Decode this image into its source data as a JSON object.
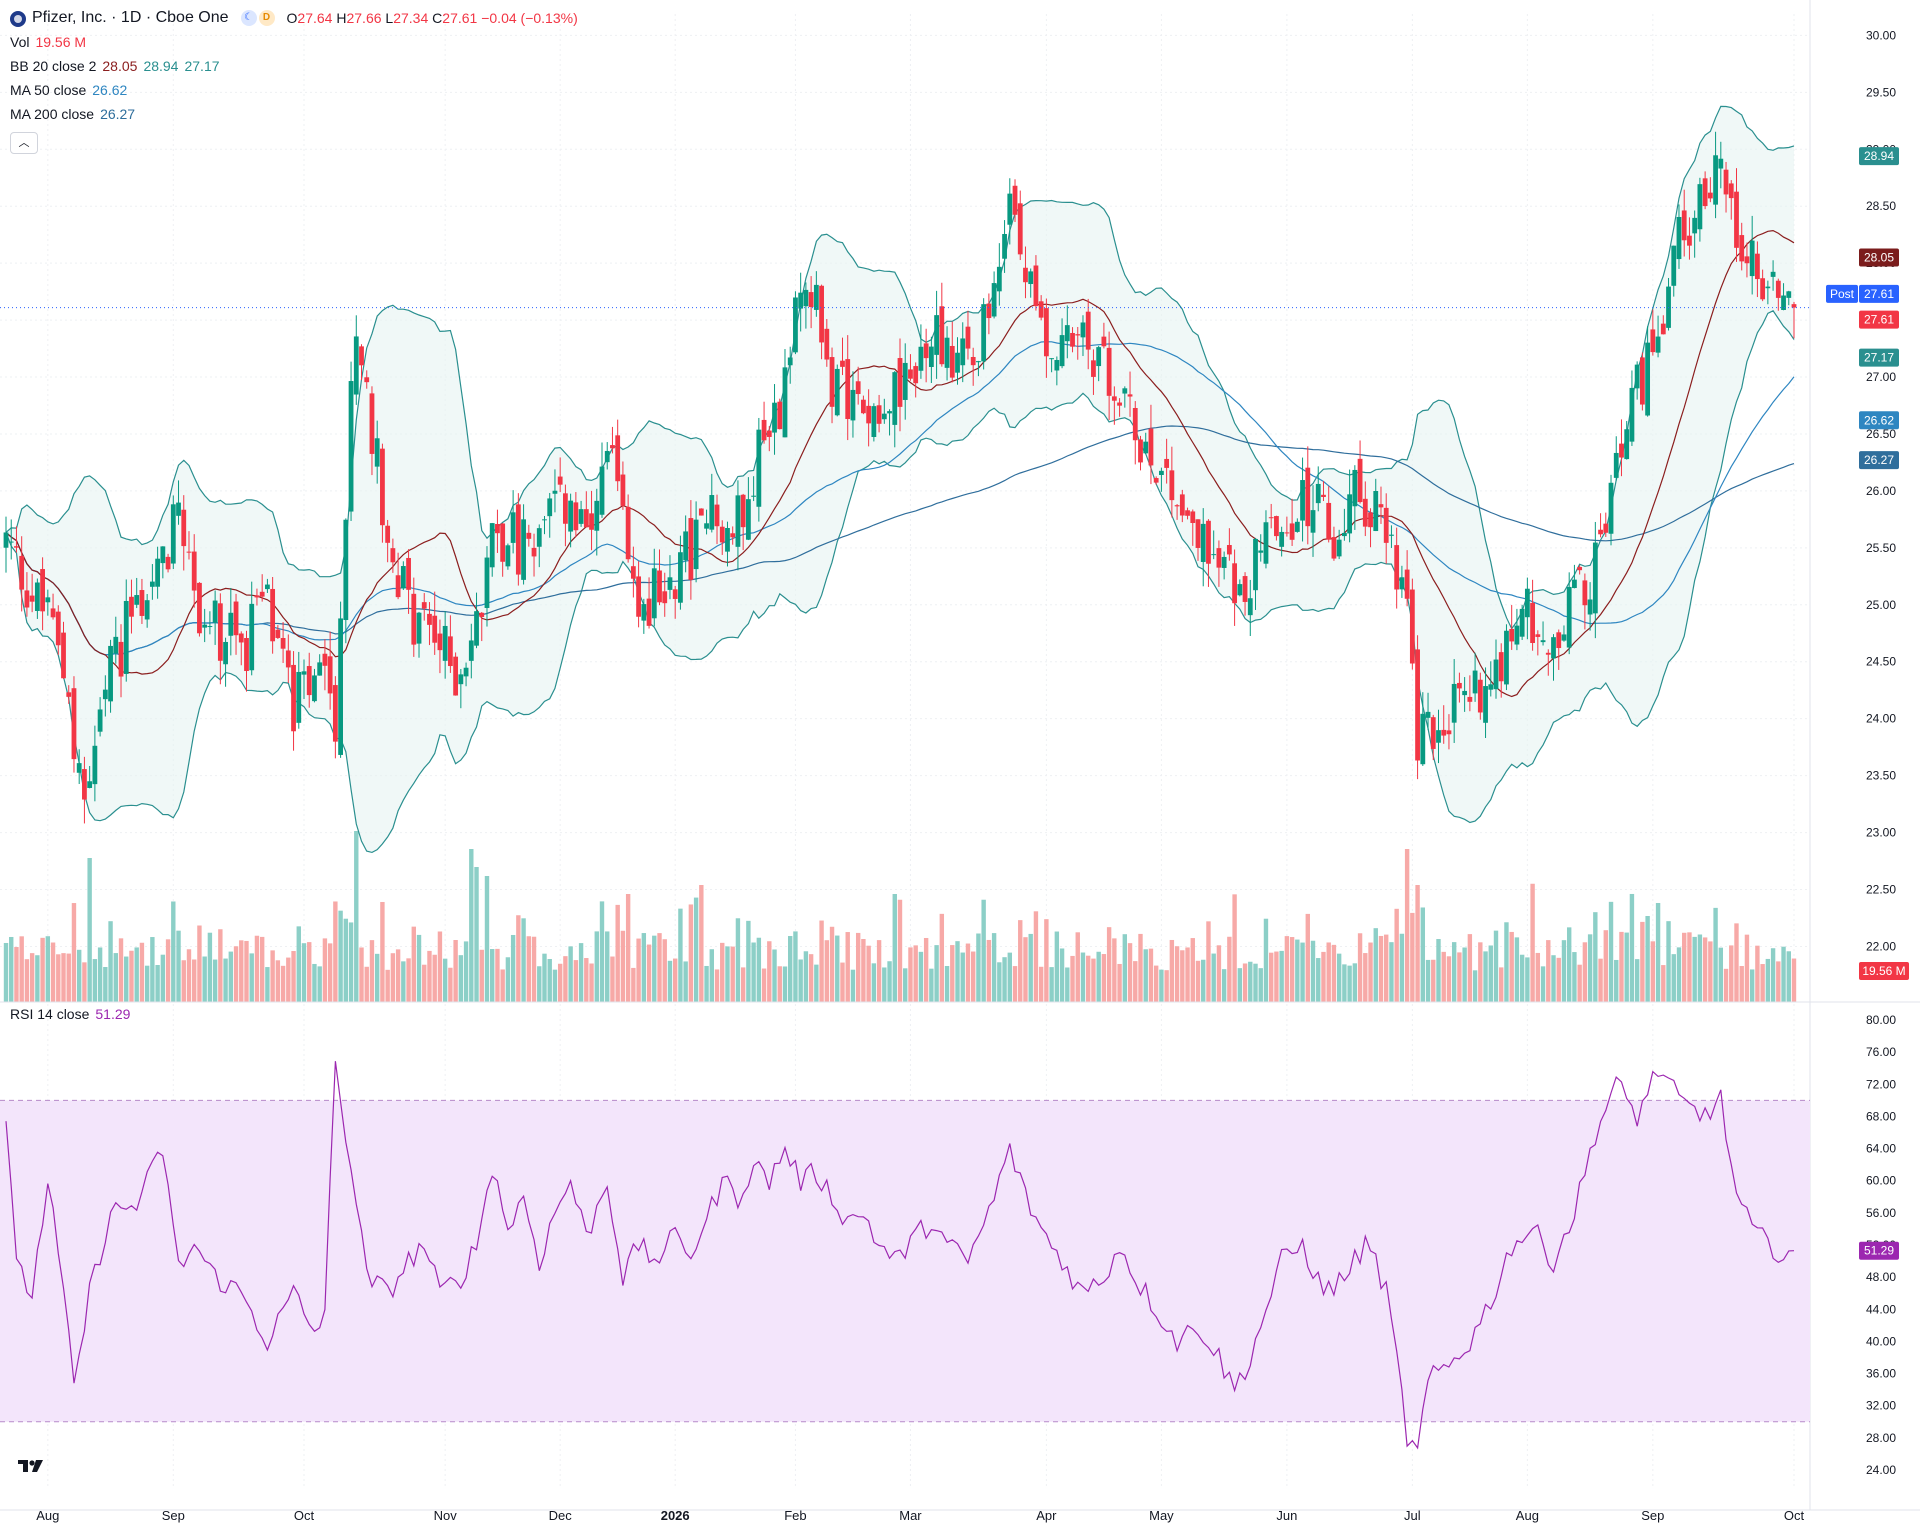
{
  "header": {
    "symbol": "Pfizer, Inc. · 1D · Cboe One",
    "ohlc": {
      "o_label": "O",
      "o": "27.64",
      "h_label": "H",
      "h": "27.66",
      "l_label": "L",
      "l": "27.34",
      "c_label": "C",
      "c": "27.61",
      "change": "−0.04 (−0.13%)"
    }
  },
  "legend": {
    "vol_label": "Vol",
    "vol_value": "19.56 M",
    "bb_label": "BB 20 close 2",
    "bb_basis": "28.05",
    "bb_upper": "28.94",
    "bb_lower": "27.17",
    "ma50_label": "MA 50 close",
    "ma50_value": "26.62",
    "ma200_label": "MA 200 close",
    "ma200_value": "26.27",
    "rsi_label": "RSI 14 close",
    "rsi_value": "51.29"
  },
  "price_badges": {
    "bb_upper": "28.94",
    "bb_basis": "28.05",
    "post_label": "Post",
    "post_price": "27.61",
    "last_price": "27.61",
    "bb_lower": "27.17",
    "ma50": "26.62",
    "ma200": "26.27",
    "volume": "19.56 M",
    "rsi": "51.29"
  },
  "colors": {
    "up": "#089981",
    "down": "#f23645",
    "vol_up": "#8ccfc7",
    "vol_down": "#f7a9a7",
    "bb_band": "#2a8f8f",
    "bb_fill": "#e6f3f1",
    "bb_basis": "#8b1e1e",
    "ma50": "#2e86c1",
    "ma200": "#2f6e9c",
    "rsi": "#9c27b0",
    "rsi_band": "#f3e5fb",
    "post_badge": "#2962ff",
    "grid": "#eef0f3"
  },
  "chart_data": {
    "type": "candlestick",
    "x_ticks": [
      "Aug",
      "Sep",
      "Oct",
      "Nov",
      "Dec",
      "2026",
      "Feb",
      "Mar",
      "Apr",
      "May",
      "Jun",
      "Jul",
      "Aug",
      "Sep",
      "Oct"
    ],
    "price_axis_ticks": [
      "30.00",
      "29.50",
      "29.00",
      "28.50",
      "28.00",
      "27.50",
      "27.00",
      "26.50",
      "26.00",
      "25.50",
      "25.00",
      "24.50",
      "24.00",
      "23.50",
      "23.00",
      "22.50",
      "22.00"
    ],
    "price_ylim": [
      21.6,
      30.1
    ],
    "rsi_axis_ticks": [
      "80.00",
      "76.00",
      "72.00",
      "68.00",
      "64.00",
      "60.00",
      "56.00",
      "52.00",
      "48.00",
      "44.00",
      "40.00",
      "36.00",
      "32.00",
      "28.00",
      "24.00"
    ],
    "rsi_ylim": [
      23,
      81
    ],
    "rsi_band": [
      30,
      70
    ],
    "price_anchors": [
      [
        0,
        25.55
      ],
      [
        5,
        25.1
      ],
      [
        10,
        24.7
      ],
      [
        15,
        23.2
      ],
      [
        20,
        24.4
      ],
      [
        25,
        25.0
      ],
      [
        30,
        25.3
      ],
      [
        33,
        26.0
      ],
      [
        36,
        25.0
      ],
      [
        40,
        24.8
      ],
      [
        45,
        24.6
      ],
      [
        50,
        25.0
      ],
      [
        55,
        24.1
      ],
      [
        60,
        24.3
      ],
      [
        63,
        24.0
      ],
      [
        67,
        27.6
      ],
      [
        70,
        26.5
      ],
      [
        73,
        25.7
      ],
      [
        77,
        24.9
      ],
      [
        81,
        24.8
      ],
      [
        86,
        24.4
      ],
      [
        90,
        24.8
      ],
      [
        94,
        25.7
      ],
      [
        98,
        25.5
      ],
      [
        102,
        25.6
      ],
      [
        107,
        25.9
      ],
      [
        111,
        25.5
      ],
      [
        116,
        26.3
      ],
      [
        120,
        25.0
      ],
      [
        125,
        25.1
      ],
      [
        130,
        25.4
      ],
      [
        135,
        25.8
      ],
      [
        139,
        25.6
      ],
      [
        143,
        26.2
      ],
      [
        148,
        26.8
      ],
      [
        151,
        27.7
      ],
      [
        153,
        28.0
      ],
      [
        158,
        26.9
      ],
      [
        162,
        26.8
      ],
      [
        168,
        26.8
      ],
      [
        172,
        26.9
      ],
      [
        178,
        27.4
      ],
      [
        182,
        27.2
      ],
      [
        188,
        27.5
      ],
      [
        192,
        28.6
      ],
      [
        196,
        27.7
      ],
      [
        200,
        27.2
      ],
      [
        205,
        27.3
      ],
      [
        210,
        27.1
      ],
      [
        215,
        26.6
      ],
      [
        220,
        26.3
      ],
      [
        225,
        25.9
      ],
      [
        230,
        25.4
      ],
      [
        235,
        25.2
      ],
      [
        240,
        25.4
      ],
      [
        245,
        25.8
      ],
      [
        250,
        25.9
      ],
      [
        254,
        25.5
      ],
      [
        258,
        26.0
      ],
      [
        262,
        25.8
      ],
      [
        266,
        25.4
      ],
      [
        268,
        24.9
      ],
      [
        270,
        23.8
      ],
      [
        273,
        24.0
      ],
      [
        276,
        24.1
      ],
      [
        280,
        24.2
      ],
      [
        285,
        24.5
      ],
      [
        290,
        25.0
      ],
      [
        295,
        24.7
      ],
      [
        300,
        25.0
      ],
      [
        305,
        25.5
      ],
      [
        309,
        26.5
      ],
      [
        313,
        27.0
      ],
      [
        317,
        27.5
      ],
      [
        320,
        28.2
      ],
      [
        325,
        28.5
      ],
      [
        328,
        29.0
      ],
      [
        331,
        28.4
      ],
      [
        334,
        28.0
      ],
      [
        337,
        27.8
      ],
      [
        340,
        27.8
      ],
      [
        342,
        27.61
      ]
    ],
    "rsi_anchors": [
      [
        0,
        68
      ],
      [
        2,
        49
      ],
      [
        5,
        46
      ],
      [
        8,
        60
      ],
      [
        11,
        46
      ],
      [
        13,
        34
      ],
      [
        16,
        46
      ],
      [
        20,
        56
      ],
      [
        25,
        57
      ],
      [
        30,
        64
      ],
      [
        33,
        49
      ],
      [
        36,
        52
      ],
      [
        40,
        48
      ],
      [
        45,
        46
      ],
      [
        50,
        40
      ],
      [
        55,
        46
      ],
      [
        59,
        41
      ],
      [
        61,
        44
      ],
      [
        63,
        74
      ],
      [
        66,
        62
      ],
      [
        69,
        48
      ],
      [
        73,
        46
      ],
      [
        77,
        50
      ],
      [
        80,
        52
      ],
      [
        83,
        46
      ],
      [
        87,
        48
      ],
      [
        90,
        52
      ],
      [
        93,
        62
      ],
      [
        96,
        54
      ],
      [
        99,
        58
      ],
      [
        102,
        50
      ],
      [
        105,
        56
      ],
      [
        108,
        60
      ],
      [
        111,
        53
      ],
      [
        115,
        60
      ],
      [
        118,
        48
      ],
      [
        121,
        52
      ],
      [
        124,
        50
      ],
      [
        128,
        53
      ],
      [
        131,
        51
      ],
      [
        134,
        55
      ],
      [
        137,
        60
      ],
      [
        140,
        58
      ],
      [
        143,
        62
      ],
      [
        146,
        60
      ],
      [
        149,
        64
      ],
      [
        152,
        60
      ],
      [
        155,
        61
      ],
      [
        158,
        58
      ],
      [
        161,
        55
      ],
      [
        164,
        56
      ],
      [
        167,
        52
      ],
      [
        170,
        50
      ],
      [
        174,
        53
      ],
      [
        177,
        55
      ],
      [
        180,
        52
      ],
      [
        184,
        50
      ],
      [
        188,
        56
      ],
      [
        192,
        64
      ],
      [
        195,
        58
      ],
      [
        198,
        54
      ],
      [
        202,
        50
      ],
      [
        206,
        46
      ],
      [
        210,
        48
      ],
      [
        213,
        52
      ],
      [
        216,
        48
      ],
      [
        220,
        44
      ],
      [
        224,
        40
      ],
      [
        228,
        42
      ],
      [
        232,
        38
      ],
      [
        235,
        34
      ],
      [
        238,
        38
      ],
      [
        241,
        44
      ],
      [
        244,
        50
      ],
      [
        248,
        52
      ],
      [
        252,
        46
      ],
      [
        256,
        48
      ],
      [
        260,
        52
      ],
      [
        262,
        50
      ],
      [
        264,
        46
      ],
      [
        266,
        38
      ],
      [
        268,
        28
      ],
      [
        270,
        26
      ],
      [
        272,
        35
      ],
      [
        276,
        37
      ],
      [
        280,
        40
      ],
      [
        284,
        45
      ],
      [
        288,
        52
      ],
      [
        292,
        54
      ],
      [
        296,
        50
      ],
      [
        300,
        56
      ],
      [
        304,
        66
      ],
      [
        308,
        72
      ],
      [
        312,
        68
      ],
      [
        316,
        74
      ],
      [
        320,
        70
      ],
      [
        324,
        68
      ],
      [
        328,
        70
      ],
      [
        331,
        58
      ],
      [
        334,
        54
      ],
      [
        337,
        52
      ],
      [
        340,
        51
      ],
      [
        342,
        51.29
      ]
    ]
  }
}
